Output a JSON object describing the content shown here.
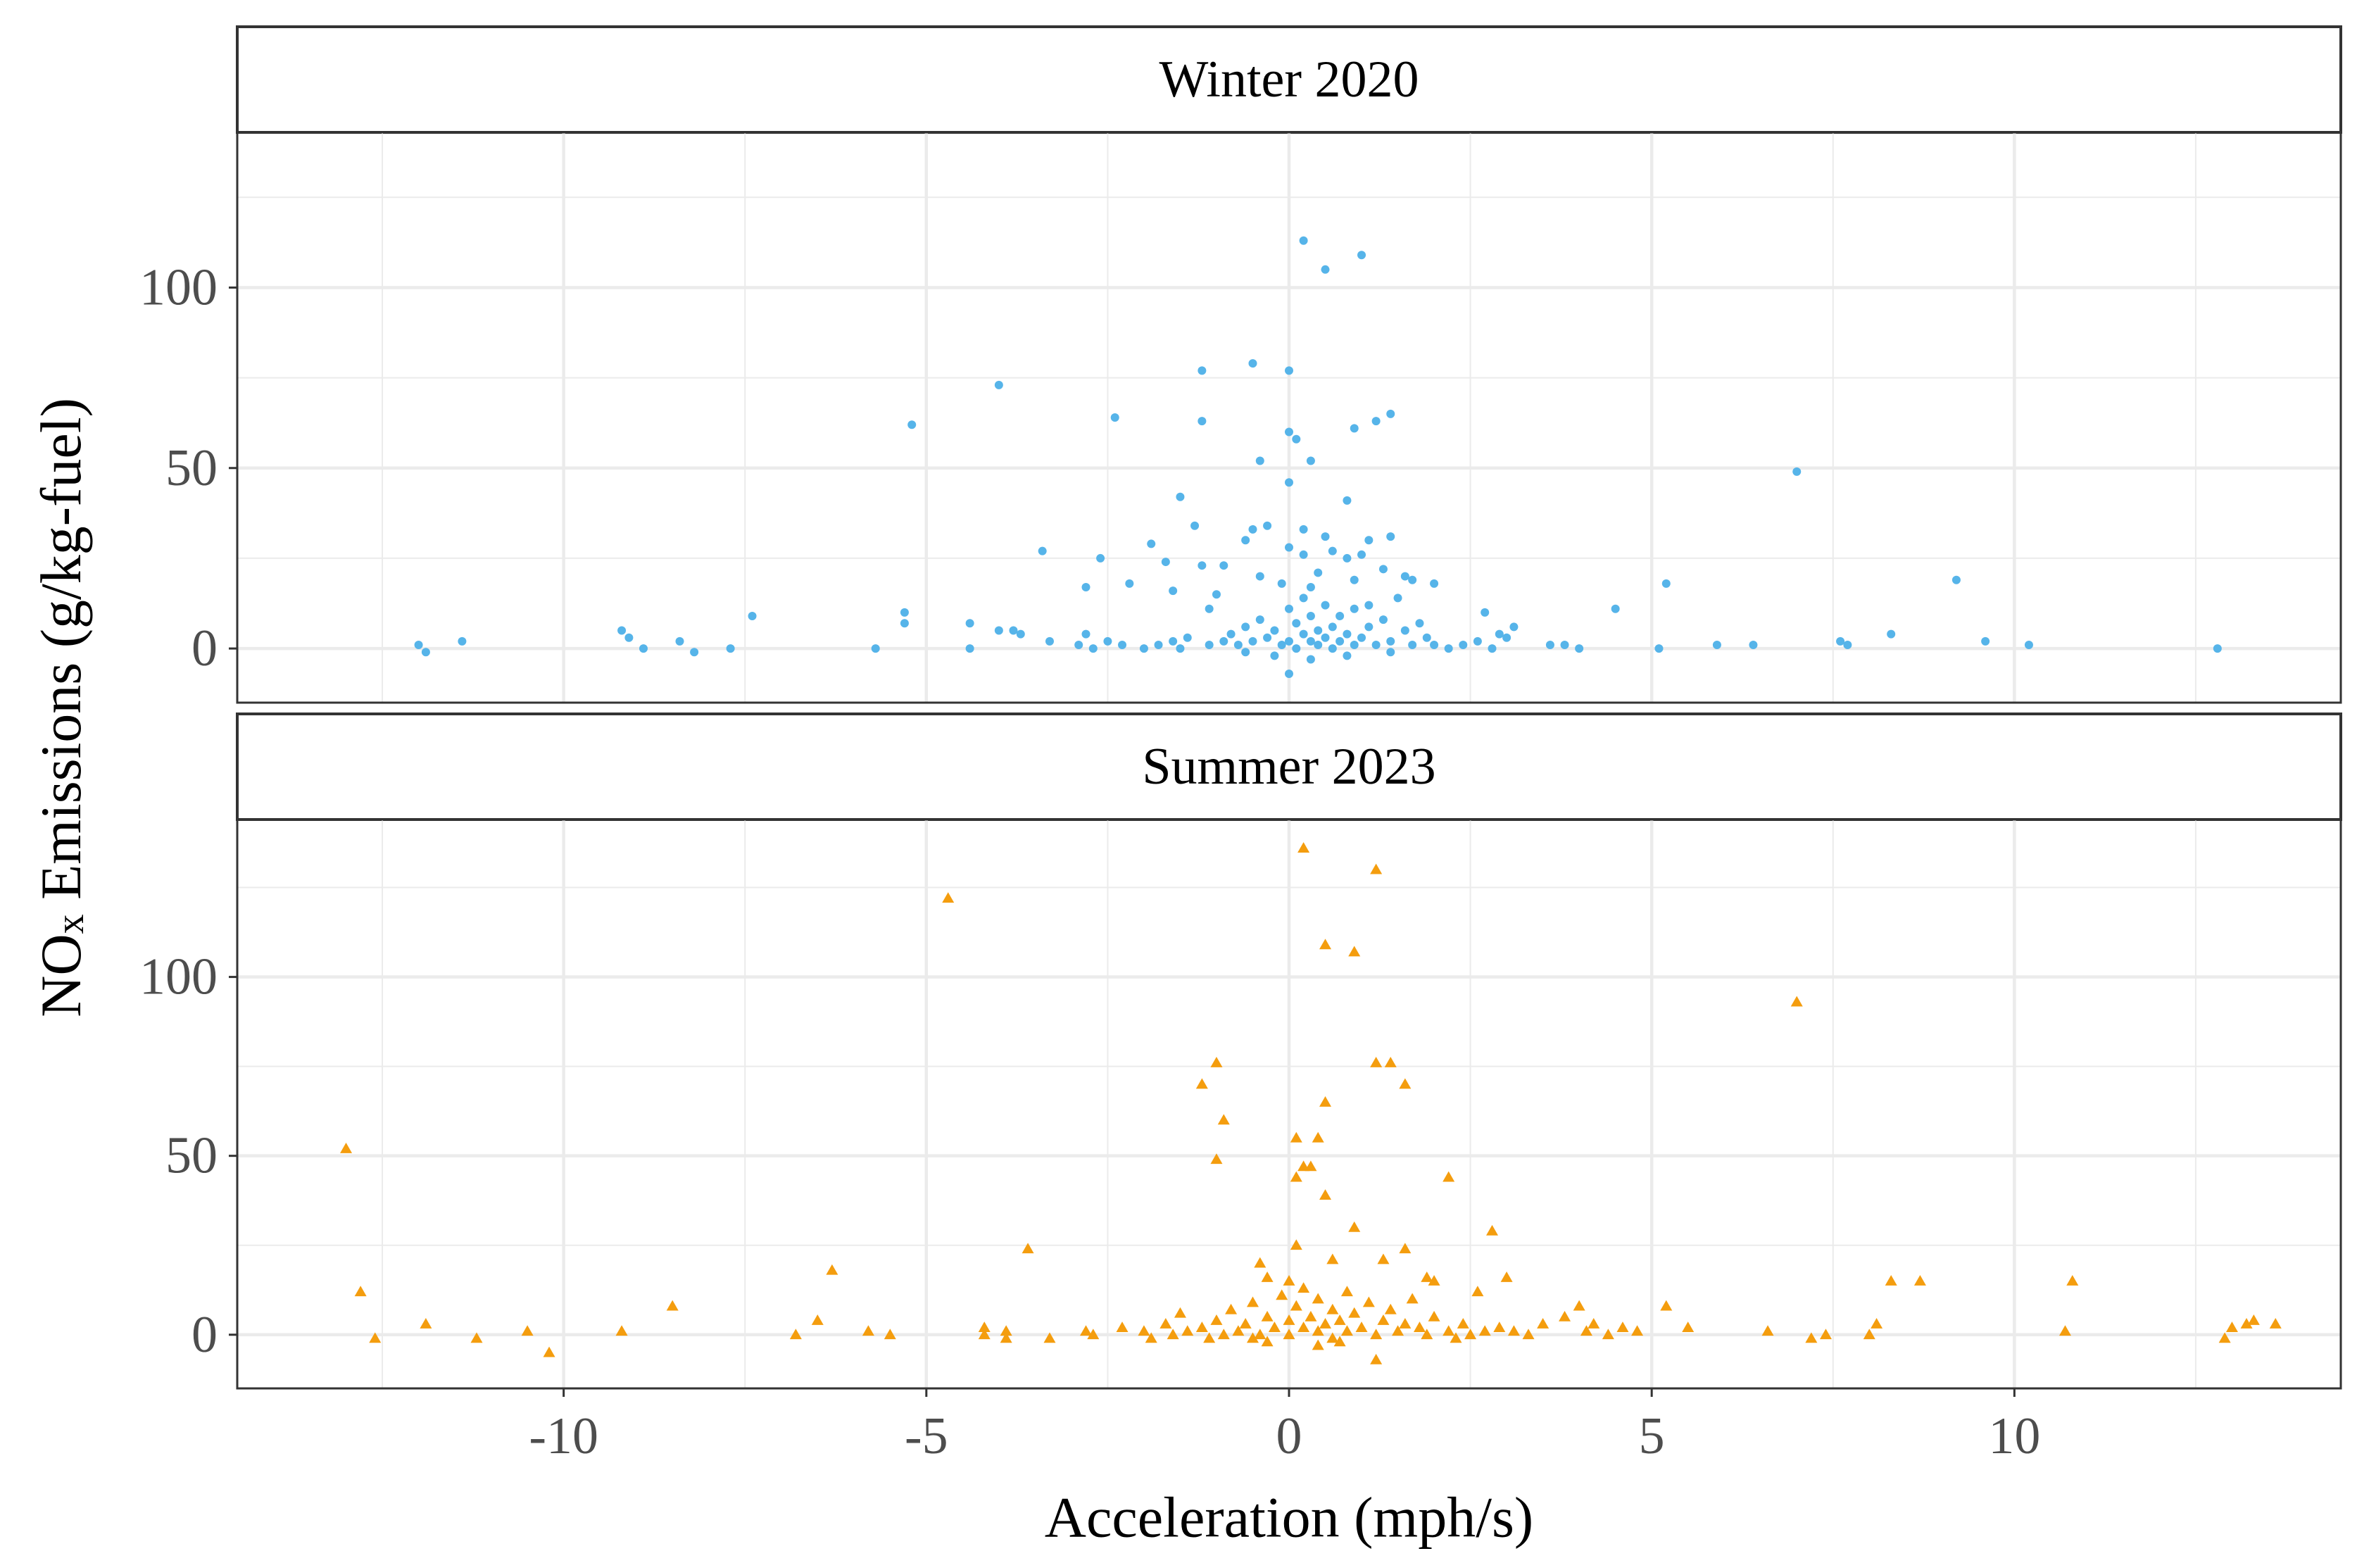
{
  "chart_data": {
    "type": "scatter",
    "xlabel": "Acceleration (mph/s)",
    "ylabel": "NOx Emissions (g/kg-fuel)",
    "ylabel_parts": {
      "pre": "NO",
      "sub": "x",
      "post": " Emissions (g/kg-fuel)"
    },
    "xlim": [
      -14.5,
      14.5
    ],
    "xticks": [
      -10,
      -5,
      0,
      5,
      10
    ],
    "xtick_labels": [
      "-10",
      "-5",
      "0",
      "5",
      "10"
    ],
    "panels": [
      {
        "title": "Winter 2020",
        "marker": "circle",
        "color": "#56B4E9",
        "ylim": [
          -15,
          143
        ],
        "yticks": [
          0,
          50,
          100
        ],
        "ytick_labels": [
          "0",
          "50",
          "100"
        ],
        "points": [
          [
            0.2,
            113
          ],
          [
            0.5,
            105
          ],
          [
            1.0,
            109
          ],
          [
            -0.5,
            79
          ],
          [
            0.0,
            77
          ],
          [
            -1.2,
            77
          ],
          [
            -4.0,
            73
          ],
          [
            -2.4,
            64
          ],
          [
            -5.2,
            62
          ],
          [
            -1.2,
            63
          ],
          [
            1.4,
            65
          ],
          [
            1.2,
            63
          ],
          [
            0.9,
            61
          ],
          [
            0.1,
            58
          ],
          [
            0.0,
            60
          ],
          [
            -0.4,
            52
          ],
          [
            0.3,
            52
          ],
          [
            7.0,
            49
          ],
          [
            0.0,
            46
          ],
          [
            -1.5,
            42
          ],
          [
            0.8,
            41
          ],
          [
            -1.3,
            34
          ],
          [
            -0.3,
            34
          ],
          [
            -0.5,
            33
          ],
          [
            0.2,
            33
          ],
          [
            0.5,
            31
          ],
          [
            1.4,
            31
          ],
          [
            1.1,
            30
          ],
          [
            -0.6,
            30
          ],
          [
            0.0,
            28
          ],
          [
            -1.9,
            29
          ],
          [
            -3.4,
            27
          ],
          [
            9.2,
            19
          ],
          [
            -2.6,
            25
          ],
          [
            -1.7,
            24
          ],
          [
            -1.2,
            23
          ],
          [
            -0.9,
            23
          ],
          [
            0.2,
            26
          ],
          [
            0.6,
            27
          ],
          [
            0.8,
            25
          ],
          [
            1.0,
            26
          ],
          [
            1.3,
            22
          ],
          [
            1.6,
            20
          ],
          [
            1.7,
            19
          ],
          [
            2.0,
            18
          ],
          [
            -2.2,
            18
          ],
          [
            -2.8,
            17
          ],
          [
            -1.6,
            16
          ],
          [
            -1.0,
            15
          ],
          [
            0.3,
            17
          ],
          [
            5.2,
            18
          ],
          [
            -7.4,
            9
          ],
          [
            -5.3,
            10
          ],
          [
            -5.3,
            7
          ],
          [
            -9.2,
            5
          ],
          [
            -9.1,
            3
          ],
          [
            -4.4,
            7
          ],
          [
            -4.0,
            5
          ],
          [
            -3.7,
            4
          ],
          [
            -3.8,
            5
          ],
          [
            -2.8,
            4
          ],
          [
            4.5,
            11
          ],
          [
            8.3,
            4
          ],
          [
            9.6,
            2
          ],
          [
            10.2,
            1
          ],
          [
            12.8,
            0
          ],
          [
            -12.0,
            1
          ],
          [
            -11.9,
            -1
          ],
          [
            -11.4,
            2
          ],
          [
            -8.9,
            0
          ],
          [
            -8.4,
            2
          ],
          [
            -8.2,
            -1
          ],
          [
            -7.7,
            0
          ],
          [
            -5.7,
            0
          ],
          [
            -4.4,
            0
          ],
          [
            -3.3,
            2
          ],
          [
            -2.9,
            1
          ],
          [
            -2.7,
            0
          ],
          [
            -2.5,
            2
          ],
          [
            -2.3,
            1
          ],
          [
            -2.0,
            0
          ],
          [
            -1.8,
            1
          ],
          [
            -1.6,
            2
          ],
          [
            -1.5,
            0
          ],
          [
            -1.4,
            3
          ],
          [
            -1.1,
            1
          ],
          [
            -0.9,
            2
          ],
          [
            -0.8,
            4
          ],
          [
            -0.7,
            1
          ],
          [
            -0.6,
            6
          ],
          [
            -0.5,
            2
          ],
          [
            -0.4,
            8
          ],
          [
            -0.3,
            3
          ],
          [
            -0.2,
            5
          ],
          [
            -0.1,
            1
          ],
          [
            0.0,
            11
          ],
          [
            0.0,
            2
          ],
          [
            0.1,
            7
          ],
          [
            0.1,
            0
          ],
          [
            0.2,
            4
          ],
          [
            0.2,
            14
          ],
          [
            0.3,
            2
          ],
          [
            0.3,
            9
          ],
          [
            0.4,
            1
          ],
          [
            0.4,
            5
          ],
          [
            0.5,
            12
          ],
          [
            0.5,
            3
          ],
          [
            0.6,
            6
          ],
          [
            0.6,
            0
          ],
          [
            0.7,
            9
          ],
          [
            0.7,
            2
          ],
          [
            0.8,
            4
          ],
          [
            0.9,
            1
          ],
          [
            0.9,
            11
          ],
          [
            1.0,
            3
          ],
          [
            1.1,
            6
          ],
          [
            1.2,
            1
          ],
          [
            1.3,
            8
          ],
          [
            1.4,
            2
          ],
          [
            1.5,
            14
          ],
          [
            1.6,
            5
          ],
          [
            1.7,
            1
          ],
          [
            1.8,
            7
          ],
          [
            1.9,
            3
          ],
          [
            2.0,
            1
          ],
          [
            2.2,
            0
          ],
          [
            2.4,
            1
          ],
          [
            2.6,
            2
          ],
          [
            2.7,
            10
          ],
          [
            2.8,
            0
          ],
          [
            2.9,
            4
          ],
          [
            3.0,
            3
          ],
          [
            3.1,
            6
          ],
          [
            3.6,
            1
          ],
          [
            3.8,
            1
          ],
          [
            4.0,
            0
          ],
          [
            5.1,
            0
          ],
          [
            5.9,
            1
          ],
          [
            6.4,
            1
          ],
          [
            7.6,
            2
          ],
          [
            7.7,
            1
          ],
          [
            -0.2,
            -2
          ],
          [
            0.3,
            -3
          ],
          [
            0.0,
            -7
          ],
          [
            0.8,
            -2
          ],
          [
            -0.6,
            -1
          ],
          [
            1.4,
            -1
          ],
          [
            -0.4,
            20
          ],
          [
            -0.1,
            18
          ],
          [
            0.4,
            21
          ],
          [
            0.9,
            19
          ],
          [
            -1.1,
            11
          ],
          [
            1.1,
            12
          ]
        ]
      },
      {
        "title": "Summer 2023",
        "marker": "triangle",
        "color": "#F49D0E",
        "ylim": [
          -15,
          144
        ],
        "yticks": [
          0,
          50,
          100
        ],
        "ytick_labels": [
          "0",
          "50",
          "100"
        ],
        "points": [
          [
            0.2,
            136
          ],
          [
            1.2,
            130
          ],
          [
            -4.7,
            122
          ],
          [
            0.5,
            109
          ],
          [
            0.9,
            107
          ],
          [
            7.0,
            93
          ],
          [
            -1.0,
            76
          ],
          [
            1.2,
            76
          ],
          [
            1.4,
            76
          ],
          [
            -1.2,
            70
          ],
          [
            1.6,
            70
          ],
          [
            0.5,
            65
          ],
          [
            -0.9,
            60
          ],
          [
            0.1,
            55
          ],
          [
            0.4,
            55
          ],
          [
            -13.0,
            52
          ],
          [
            -1.0,
            49
          ],
          [
            0.2,
            47
          ],
          [
            0.3,
            47
          ],
          [
            0.1,
            44
          ],
          [
            2.2,
            44
          ],
          [
            0.5,
            39
          ],
          [
            2.8,
            29
          ],
          [
            0.9,
            30
          ],
          [
            0.1,
            25
          ],
          [
            -3.6,
            24
          ],
          [
            1.6,
            24
          ],
          [
            0.6,
            21
          ],
          [
            1.3,
            21
          ],
          [
            -0.4,
            20
          ],
          [
            -6.3,
            18
          ],
          [
            3.0,
            16
          ],
          [
            1.9,
            16
          ],
          [
            2.0,
            15
          ],
          [
            -0.3,
            16
          ],
          [
            0.0,
            15
          ],
          [
            8.3,
            15
          ],
          [
            8.7,
            15
          ],
          [
            10.8,
            15
          ],
          [
            -12.8,
            12
          ],
          [
            2.6,
            12
          ],
          [
            -8.5,
            8
          ],
          [
            5.2,
            8
          ],
          [
            -6.5,
            4
          ],
          [
            -12.6,
            -1
          ],
          [
            -11.9,
            3
          ],
          [
            -11.2,
            -1
          ],
          [
            -10.5,
            1
          ],
          [
            -10.2,
            -5
          ],
          [
            -9.2,
            1
          ],
          [
            -6.8,
            0
          ],
          [
            -5.8,
            1
          ],
          [
            -5.5,
            0
          ],
          [
            -4.2,
            2
          ],
          [
            -4.2,
            0
          ],
          [
            -3.9,
            1
          ],
          [
            -3.9,
            -1
          ],
          [
            -3.3,
            -1
          ],
          [
            -2.8,
            1
          ],
          [
            -2.7,
            0
          ],
          [
            -2.3,
            2
          ],
          [
            -2.0,
            1
          ],
          [
            -1.9,
            -1
          ],
          [
            -1.7,
            3
          ],
          [
            -1.6,
            0
          ],
          [
            -1.5,
            6
          ],
          [
            -1.4,
            1
          ],
          [
            -1.2,
            2
          ],
          [
            -1.1,
            -1
          ],
          [
            -1.0,
            4
          ],
          [
            -0.9,
            0
          ],
          [
            -0.8,
            7
          ],
          [
            -0.7,
            1
          ],
          [
            -0.6,
            3
          ],
          [
            -0.5,
            9
          ],
          [
            -0.4,
            0
          ],
          [
            -0.3,
            5
          ],
          [
            -0.2,
            2
          ],
          [
            -0.1,
            11
          ],
          [
            0.0,
            4
          ],
          [
            0.0,
            0
          ],
          [
            0.1,
            8
          ],
          [
            0.2,
            2
          ],
          [
            0.2,
            13
          ],
          [
            0.3,
            5
          ],
          [
            0.4,
            1
          ],
          [
            0.4,
            10
          ],
          [
            0.5,
            3
          ],
          [
            0.6,
            7
          ],
          [
            0.6,
            -1
          ],
          [
            0.7,
            4
          ],
          [
            0.8,
            12
          ],
          [
            0.8,
            1
          ],
          [
            0.9,
            6
          ],
          [
            1.0,
            2
          ],
          [
            1.1,
            9
          ],
          [
            1.2,
            0
          ],
          [
            1.3,
            4
          ],
          [
            1.4,
            7
          ],
          [
            1.5,
            1
          ],
          [
            1.6,
            3
          ],
          [
            1.7,
            10
          ],
          [
            1.8,
            2
          ],
          [
            1.9,
            0
          ],
          [
            2.0,
            5
          ],
          [
            2.2,
            1
          ],
          [
            2.4,
            3
          ],
          [
            2.5,
            0
          ],
          [
            2.7,
            1
          ],
          [
            2.9,
            2
          ],
          [
            3.1,
            1
          ],
          [
            3.3,
            0
          ],
          [
            3.5,
            3
          ],
          [
            3.8,
            5
          ],
          [
            4.0,
            8
          ],
          [
            4.1,
            1
          ],
          [
            4.2,
            3
          ],
          [
            4.4,
            0
          ],
          [
            4.6,
            2
          ],
          [
            4.8,
            1
          ],
          [
            5.5,
            2
          ],
          [
            6.6,
            1
          ],
          [
            7.2,
            -1
          ],
          [
            7.4,
            0
          ],
          [
            8.0,
            0
          ],
          [
            8.1,
            3
          ],
          [
            10.7,
            1
          ],
          [
            12.9,
            -1
          ],
          [
            13.0,
            2
          ],
          [
            13.2,
            3
          ],
          [
            13.3,
            4
          ],
          [
            13.6,
            3
          ],
          [
            1.2,
            -7
          ],
          [
            0.4,
            -3
          ],
          [
            -0.3,
            -2
          ],
          [
            0.7,
            -2
          ],
          [
            2.3,
            -1
          ],
          [
            -0.5,
            -1
          ]
        ]
      }
    ]
  }
}
